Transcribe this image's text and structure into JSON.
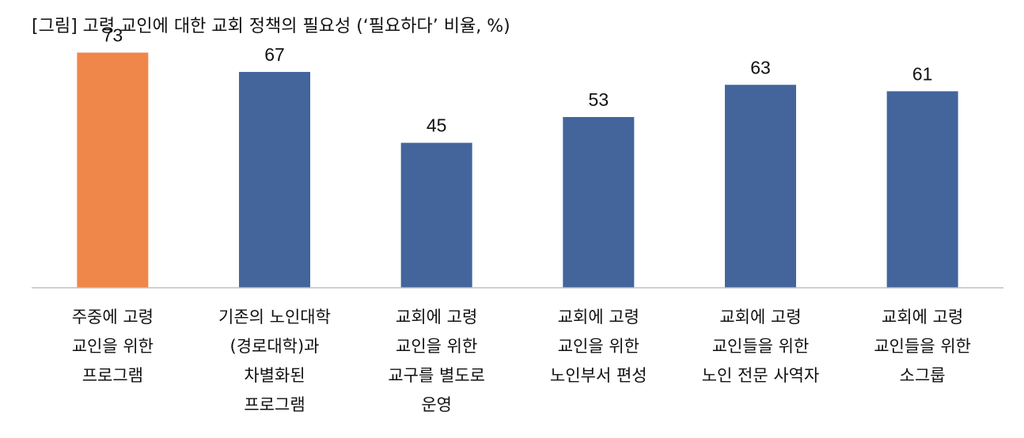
{
  "chart_data": {
    "type": "bar",
    "title": "[그림] 고령 교인에 대한 교회 정책의 필요성 (‘필요하다’ 비율, %)",
    "categories": [
      [
        "주중에 고령",
        "교인을 위한",
        "프로그램"
      ],
      [
        "기존의 노인대학",
        "(경로대학)과",
        "차별화된",
        "프로그램"
      ],
      [
        "교회에 고령",
        "교인을 위한",
        "교구를 별도로",
        "운영"
      ],
      [
        "교회에 고령",
        "교인을 위한",
        "노인부서 편성"
      ],
      [
        "교회에 고령",
        "교인들을 위한",
        "노인 전문 사역자"
      ],
      [
        "교회에 고령",
        "교인들을 위한",
        "소그룹"
      ]
    ],
    "values": [
      73,
      67,
      45,
      53,
      63,
      61
    ],
    "ylim": [
      0,
      80
    ],
    "grid": false,
    "legend": "none",
    "colors": {
      "highlight": "#F0874A",
      "default": "#43659C",
      "axis": "#BFBFBF"
    },
    "highlight_index": 0
  }
}
